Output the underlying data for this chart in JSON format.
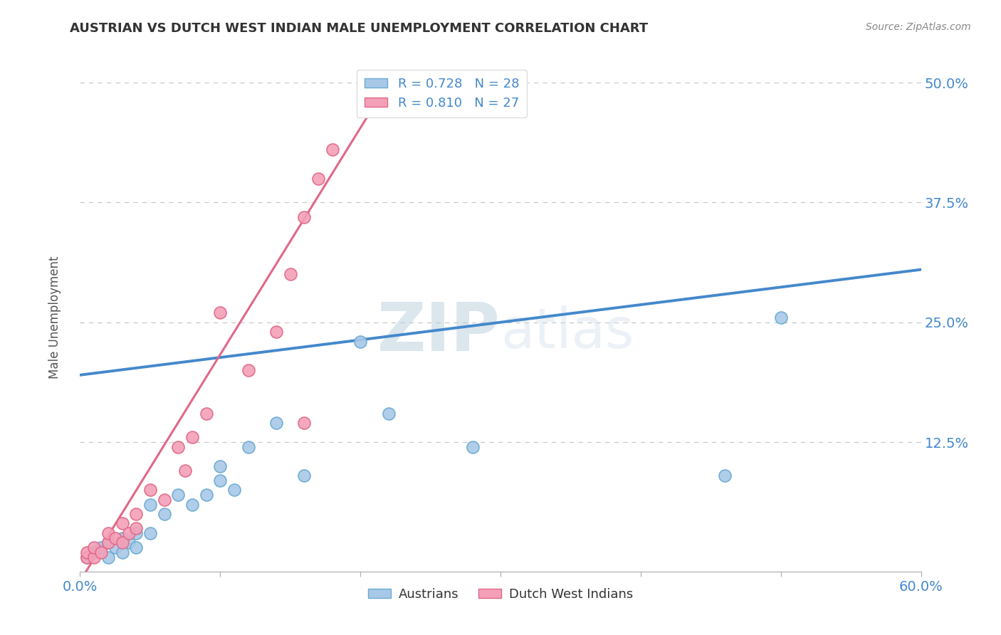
{
  "title": "AUSTRIAN VS DUTCH WEST INDIAN MALE UNEMPLOYMENT CORRELATION CHART",
  "source": "Source: ZipAtlas.com",
  "ylabel": "Male Unemployment",
  "xlim": [
    0.0,
    0.6
  ],
  "ylim": [
    -0.01,
    0.52
  ],
  "ytick_positions": [
    0.125,
    0.25,
    0.375,
    0.5
  ],
  "ytick_labels": [
    "12.5%",
    "25.0%",
    "37.5%",
    "50.0%"
  ],
  "background_color": "#ffffff",
  "grid_color": "#c8c8c8",
  "watermark_zip": "ZIP",
  "watermark_atlas": "atlas",
  "legend_entries": [
    {
      "label_r": "R = 0.728",
      "label_n": "N = 28",
      "color": "#a8c8e8"
    },
    {
      "label_r": "R = 0.810",
      "label_n": "N = 27",
      "color": "#f4a0b8"
    }
  ],
  "legend_bottom": [
    "Austrians",
    "Dutch West Indians"
  ],
  "austrians_x": [
    0.005,
    0.01,
    0.015,
    0.02,
    0.02,
    0.025,
    0.03,
    0.03,
    0.035,
    0.04,
    0.04,
    0.05,
    0.05,
    0.06,
    0.07,
    0.08,
    0.09,
    0.1,
    0.1,
    0.11,
    0.12,
    0.14,
    0.16,
    0.2,
    0.22,
    0.28,
    0.46,
    0.5
  ],
  "austrians_y": [
    0.005,
    0.01,
    0.015,
    0.005,
    0.02,
    0.015,
    0.01,
    0.025,
    0.02,
    0.015,
    0.03,
    0.03,
    0.06,
    0.05,
    0.07,
    0.06,
    0.07,
    0.085,
    0.1,
    0.075,
    0.12,
    0.145,
    0.09,
    0.23,
    0.155,
    0.12,
    0.09,
    0.255
  ],
  "dutch_x": [
    0.005,
    0.005,
    0.01,
    0.01,
    0.015,
    0.02,
    0.02,
    0.025,
    0.03,
    0.03,
    0.035,
    0.04,
    0.04,
    0.05,
    0.06,
    0.07,
    0.075,
    0.08,
    0.09,
    0.1,
    0.12,
    0.14,
    0.15,
    0.16,
    0.16,
    0.17,
    0.18
  ],
  "dutch_y": [
    0.005,
    0.01,
    0.005,
    0.015,
    0.01,
    0.02,
    0.03,
    0.025,
    0.02,
    0.04,
    0.03,
    0.035,
    0.05,
    0.075,
    0.065,
    0.12,
    0.095,
    0.13,
    0.155,
    0.26,
    0.2,
    0.24,
    0.3,
    0.36,
    0.145,
    0.4,
    0.43
  ],
  "blue_line_x": [
    0.0,
    0.6
  ],
  "blue_line_y": [
    0.195,
    0.305
  ],
  "pink_line_x": [
    0.0,
    0.22
  ],
  "pink_line_y": [
    -0.02,
    0.5
  ],
  "dot_color_blue": "#a8c8e8",
  "dot_color_pink": "#f4a0b8",
  "dot_edgecolor_blue": "#6aaad0",
  "dot_edgecolor_pink": "#e06888",
  "line_color_blue": "#4488cc",
  "line_color_pink": "#e06888",
  "title_color": "#333333",
  "axis_label_color": "#4488cc",
  "ylabel_color": "#555555"
}
